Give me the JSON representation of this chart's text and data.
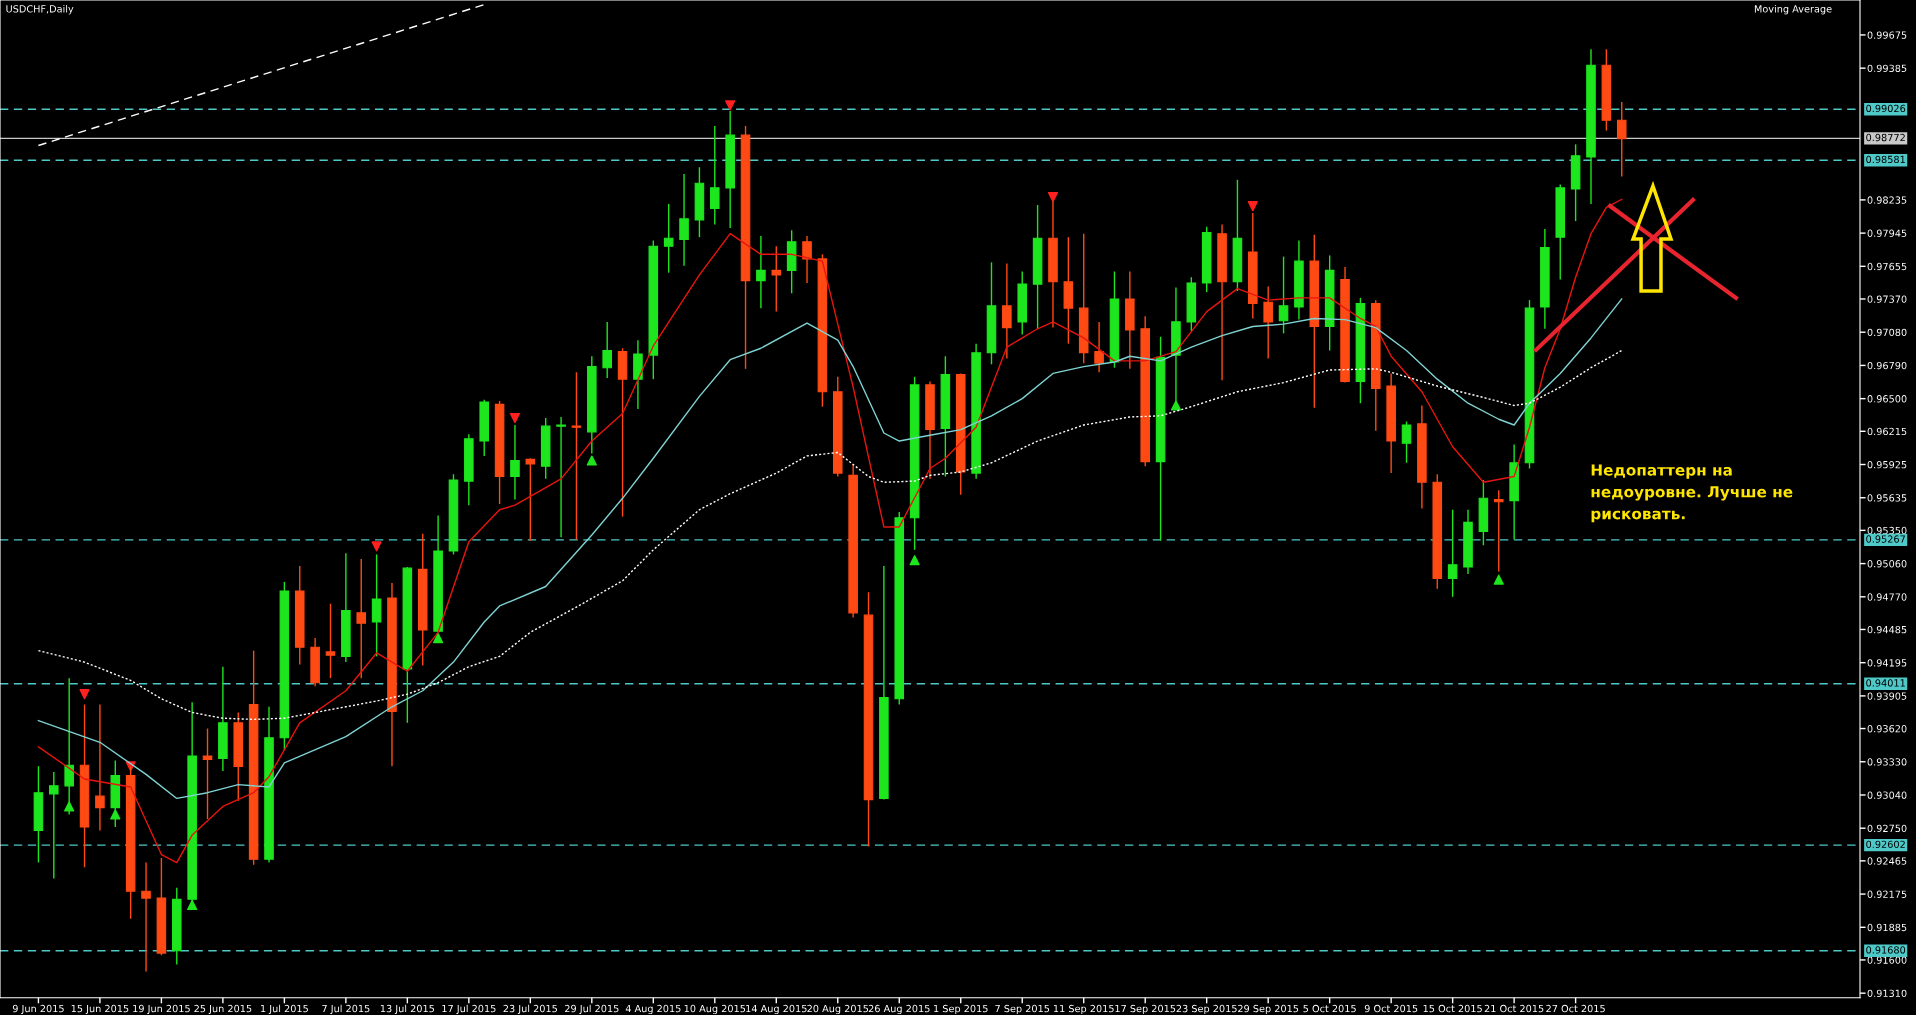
{
  "chart_data": {
    "type": "candlestick",
    "title": "USDCHF,Daily",
    "annotations": [
      "Moving Average",
      "Недопаттерн на\nнедоуровне. Лучше не\nрисковать."
    ],
    "categories": [
      "9 Jun 2015",
      null,
      null,
      null,
      "15 Jun 2015",
      null,
      null,
      null,
      "19 Jun 2015",
      null,
      null,
      null,
      "25 Jun 2015",
      null,
      null,
      null,
      "1 Jul 2015",
      null,
      null,
      null,
      "7 Jul 2015",
      null,
      null,
      null,
      "13 Jul 2015",
      null,
      null,
      null,
      "17 Jul 2015",
      null,
      null,
      null,
      "23 Jul 2015",
      null,
      null,
      null,
      "29 Jul 2015",
      null,
      null,
      null,
      "4 Aug 2015",
      null,
      null,
      null,
      "10 Aug 2015",
      null,
      null,
      null,
      "14 Aug 2015",
      null,
      null,
      null,
      "20 Aug 2015",
      null,
      null,
      null,
      "26 Aug 2015",
      null,
      null,
      null,
      "1 Sep 2015",
      null,
      null,
      null,
      "7 Sep 2015",
      null,
      null,
      null,
      "11 Sep 2015",
      null,
      null,
      null,
      "17 Sep 2015",
      null,
      null,
      null,
      "23 Sep 2015",
      null,
      null,
      null,
      "29 Sep 2015",
      null,
      null,
      null,
      "5 Oct 2015",
      null,
      null,
      null,
      "9 Oct 2015",
      null,
      null,
      null,
      "15 Oct 2015",
      null,
      null,
      null,
      "21 Oct 2015",
      null,
      null,
      null,
      "27 Oct 2015",
      null,
      null,
      null
    ],
    "ohlc": [
      [
        0.9273,
        0.9329,
        0.9245,
        0.9306
      ],
      [
        0.9305,
        0.9324,
        0.9231,
        0.9312
      ],
      [
        0.9312,
        0.9406,
        0.9287,
        0.933
      ],
      [
        0.933,
        0.9383,
        0.9241,
        0.9276
      ],
      [
        0.9303,
        0.9383,
        0.9273,
        0.9293
      ],
      [
        0.9293,
        0.9334,
        0.9276,
        0.9321
      ],
      [
        0.9321,
        0.9329,
        0.9196,
        0.922
      ],
      [
        0.922,
        0.9245,
        0.915,
        0.9214
      ],
      [
        0.9214,
        0.9249,
        0.9164,
        0.9166
      ],
      [
        0.9168,
        0.9223,
        0.9156,
        0.9213
      ],
      [
        0.9213,
        0.9385,
        0.921,
        0.9338
      ],
      [
        0.9338,
        0.9362,
        0.9283,
        0.9335
      ],
      [
        0.9336,
        0.9416,
        0.9325,
        0.9367
      ],
      [
        0.9367,
        0.9376,
        0.9299,
        0.9329
      ],
      [
        0.9383,
        0.943,
        0.9243,
        0.9248
      ],
      [
        0.9248,
        0.9381,
        0.9245,
        0.9354
      ],
      [
        0.9354,
        0.949,
        0.9343,
        0.9482
      ],
      [
        0.9482,
        0.9504,
        0.9418,
        0.9433
      ],
      [
        0.9433,
        0.9441,
        0.9399,
        0.9402
      ],
      [
        0.9429,
        0.9471,
        0.9406,
        0.9426
      ],
      [
        0.9425,
        0.9515,
        0.942,
        0.9465
      ],
      [
        0.9463,
        0.951,
        0.9406,
        0.9454
      ],
      [
        0.9455,
        0.9514,
        0.9425,
        0.9475
      ],
      [
        0.9476,
        0.9489,
        0.9329,
        0.9377
      ],
      [
        0.9414,
        0.9503,
        0.9367,
        0.9502
      ],
      [
        0.9501,
        0.9532,
        0.9417,
        0.9448
      ],
      [
        0.9447,
        0.9548,
        0.9446,
        0.9517
      ],
      [
        0.9517,
        0.9584,
        0.9514,
        0.9579
      ],
      [
        0.9578,
        0.9619,
        0.9557,
        0.9615
      ],
      [
        0.9613,
        0.9649,
        0.96,
        0.9647
      ],
      [
        0.9645,
        0.9648,
        0.9558,
        0.9582
      ],
      [
        0.9582,
        0.9627,
        0.9562,
        0.9596
      ],
      [
        0.9597,
        0.9598,
        0.9526,
        0.9593
      ],
      [
        0.9591,
        0.9633,
        0.958,
        0.9626
      ],
      [
        0.9626,
        0.9634,
        0.9529,
        0.9627
      ],
      [
        0.9626,
        0.9673,
        0.9527,
        0.9625
      ],
      [
        0.9621,
        0.9687,
        0.9602,
        0.9678
      ],
      [
        0.9677,
        0.9717,
        0.9668,
        0.9692
      ],
      [
        0.9691,
        0.9694,
        0.9547,
        0.9667
      ],
      [
        0.9667,
        0.9701,
        0.9641,
        0.9689
      ],
      [
        0.9688,
        0.9788,
        0.9667,
        0.9783
      ],
      [
        0.9783,
        0.982,
        0.976,
        0.979
      ],
      [
        0.9789,
        0.9846,
        0.9766,
        0.9807
      ],
      [
        0.9806,
        0.9852,
        0.9791,
        0.9838
      ],
      [
        0.9816,
        0.9888,
        0.9802,
        0.9834
      ],
      [
        0.9834,
        0.9901,
        0.9799,
        0.988
      ],
      [
        0.988,
        0.9888,
        0.9676,
        0.9753
      ],
      [
        0.9753,
        0.9792,
        0.9729,
        0.9762
      ],
      [
        0.9762,
        0.9783,
        0.9726,
        0.9758
      ],
      [
        0.9762,
        0.9797,
        0.9742,
        0.9787
      ],
      [
        0.9787,
        0.9792,
        0.9751,
        0.9772
      ],
      [
        0.9772,
        0.9776,
        0.9643,
        0.9656
      ],
      [
        0.9656,
        0.9669,
        0.9582,
        0.9585
      ],
      [
        0.9583,
        0.9593,
        0.9459,
        0.9463
      ],
      [
        0.9461,
        0.9481,
        0.9259,
        0.93
      ],
      [
        0.9301,
        0.9504,
        0.93,
        0.9389
      ],
      [
        0.9388,
        0.9551,
        0.9383,
        0.9546
      ],
      [
        0.9546,
        0.9669,
        0.9518,
        0.9662
      ],
      [
        0.9662,
        0.9665,
        0.958,
        0.9623
      ],
      [
        0.9624,
        0.9687,
        0.9582,
        0.9671
      ],
      [
        0.9671,
        0.9672,
        0.9566,
        0.9586
      ],
      [
        0.9585,
        0.9698,
        0.958,
        0.969
      ],
      [
        0.969,
        0.9769,
        0.968,
        0.9731
      ],
      [
        0.9731,
        0.9768,
        0.9685,
        0.9712
      ],
      [
        0.9717,
        0.9761,
        0.9706,
        0.975
      ],
      [
        0.975,
        0.9819,
        0.9711,
        0.979
      ],
      [
        0.979,
        0.9822,
        0.9712,
        0.9752
      ],
      [
        0.9752,
        0.9791,
        0.9698,
        0.9729
      ],
      [
        0.9729,
        0.9794,
        0.9681,
        0.969
      ],
      [
        0.9691,
        0.9717,
        0.9673,
        0.9681
      ],
      [
        0.9682,
        0.9761,
        0.9677,
        0.9737
      ],
      [
        0.9737,
        0.9761,
        0.9676,
        0.971
      ],
      [
        0.9711,
        0.9722,
        0.9591,
        0.9595
      ],
      [
        0.9595,
        0.9704,
        0.9526,
        0.9686
      ],
      [
        0.9688,
        0.9747,
        0.9642,
        0.9717
      ],
      [
        0.9717,
        0.9756,
        0.9709,
        0.9751
      ],
      [
        0.9751,
        0.98,
        0.9743,
        0.9795
      ],
      [
        0.9794,
        0.9802,
        0.9666,
        0.9752
      ],
      [
        0.9752,
        0.9841,
        0.9744,
        0.979
      ],
      [
        0.9778,
        0.9812,
        0.972,
        0.9733
      ],
      [
        0.9734,
        0.9748,
        0.9685,
        0.9717
      ],
      [
        0.9718,
        0.9774,
        0.9707,
        0.9731
      ],
      [
        0.973,
        0.9788,
        0.9719,
        0.977
      ],
      [
        0.977,
        0.9793,
        0.9642,
        0.9713
      ],
      [
        0.9713,
        0.9775,
        0.9692,
        0.9762
      ],
      [
        0.9754,
        0.9765,
        0.9664,
        0.9665
      ],
      [
        0.9665,
        0.9738,
        0.9646,
        0.9733
      ],
      [
        0.9733,
        0.9736,
        0.9622,
        0.9659
      ],
      [
        0.9661,
        0.9672,
        0.9585,
        0.9613
      ],
      [
        0.9611,
        0.963,
        0.9594,
        0.9627
      ],
      [
        0.9628,
        0.9644,
        0.9554,
        0.9577
      ],
      [
        0.9577,
        0.9584,
        0.9484,
        0.9493
      ],
      [
        0.9493,
        0.9553,
        0.9477,
        0.9505
      ],
      [
        0.9503,
        0.9553,
        0.9497,
        0.9542
      ],
      [
        0.9534,
        0.9579,
        0.9522,
        0.9563
      ],
      [
        0.9562,
        0.957,
        0.9499,
        0.956
      ],
      [
        0.9561,
        0.961,
        0.9527,
        0.9594
      ],
      [
        0.9594,
        0.9736,
        0.9589,
        0.9729
      ],
      [
        0.973,
        0.9798,
        0.9711,
        0.9782
      ],
      [
        0.9791,
        0.9837,
        0.9754,
        0.9834
      ],
      [
        0.9833,
        0.9872,
        0.9805,
        0.9862
      ],
      [
        0.9861,
        0.9955,
        0.982,
        0.9941
      ],
      [
        0.9941,
        0.9955,
        0.9884,
        0.9893
      ],
      [
        0.9893,
        0.9909,
        0.9844,
        0.9877
      ]
    ],
    "colors": [
      "#1ee61e",
      "#1ee61e",
      "#1ee61e",
      "#ff4a14",
      "#ff4a14",
      "#1ee61e",
      "#ff4a14",
      "#ff4a14",
      "#ff4a14",
      "#1ee61e",
      "#1ee61e",
      "#ff4a14",
      "#1ee61e",
      "#ff4a14",
      "#ff4a14",
      "#1ee61e",
      "#1ee61e",
      "#ff4a14",
      "#ff4a14",
      "#ff4a14",
      "#1ee61e",
      "#ff4a14",
      "#1ee61e",
      "#ff4a14",
      "#1ee61e",
      "#ff4a14",
      "#1ee61e",
      "#1ee61e",
      "#1ee61e",
      "#1ee61e",
      "#ff4a14",
      "#1ee61e",
      "#ff4a14",
      "#1ee61e",
      "#1ee61e",
      "#ff4a14",
      "#1ee61e",
      "#1ee61e",
      "#ff4a14",
      "#1ee61e",
      "#1ee61e",
      "#1ee61e",
      "#1ee61e",
      "#1ee61e",
      "#1ee61e",
      "#1ee61e",
      "#ff4a14",
      "#1ee61e",
      "#ff4a14",
      "#1ee61e",
      "#ff4a14",
      "#ff4a14",
      "#ff4a14",
      "#ff4a14",
      "#ff4a14",
      "#1ee61e",
      "#1ee61e",
      "#1ee61e",
      "#ff4a14",
      "#1ee61e",
      "#ff4a14",
      "#1ee61e",
      "#1ee61e",
      "#ff4a14",
      "#1ee61e",
      "#1ee61e",
      "#ff4a14",
      "#ff4a14",
      "#ff4a14",
      "#ff4a14",
      "#1ee61e",
      "#ff4a14",
      "#ff4a14",
      "#1ee61e",
      "#1ee61e",
      "#1ee61e",
      "#1ee61e",
      "#ff4a14",
      "#1ee61e",
      "#ff4a14",
      "#ff4a14",
      "#1ee61e",
      "#1ee61e",
      "#ff4a14",
      "#1ee61e",
      "#ff4a14",
      "#1ee61e",
      "#ff4a14",
      "#ff4a14",
      "#1ee61e",
      "#ff4a14",
      "#ff4a14",
      "#1ee61e",
      "#1ee61e",
      "#1ee61e",
      "#ff4a14",
      "#1ee61e",
      "#1ee61e",
      "#1ee61e",
      "#1ee61e",
      "#1ee61e",
      "#1ee61e",
      "#ff4a14",
      "#ff4a14"
    ],
    "series": [
      {
        "type": "line",
        "color": "#e8150f",
        "line_style": "solid",
        "values": [
          0.9346,
          null,
          null,
          0.9318,
          null,
          null,
          0.9311,
          null,
          0.9252,
          0.9245,
          0.9269,
          null,
          0.9294,
          null,
          0.9306,
          0.932,
          null,
          0.9367,
          null,
          null,
          0.9395,
          null,
          0.9428,
          null,
          0.9412,
          null,
          0.9446,
          null,
          0.9525,
          null,
          0.9553,
          0.9557,
          null,
          null,
          0.958,
          null,
          0.9613,
          null,
          0.9637,
          null,
          0.9696,
          null,
          null,
          0.9758,
          null,
          0.9794,
          null,
          0.9776,
          null,
          0.9776,
          null,
          0.977,
          null,
          0.966,
          null,
          0.9538,
          0.9538,
          null,
          0.9589,
          0.9598,
          null,
          0.9625,
          null,
          0.9695,
          null,
          0.9711,
          0.9717,
          null,
          0.9703,
          null,
          0.9683,
          null,
          0.9683,
          null,
          0.9691,
          null,
          0.9726,
          null,
          0.9746,
          null,
          0.9736,
          null,
          0.9738,
          null,
          0.9738,
          null,
          0.972,
          0.9713,
          0.9687,
          null,
          0.9656,
          null,
          0.9608,
          null,
          0.9577,
          null,
          0.9582,
          0.9625,
          0.9677,
          0.9711,
          0.9756,
          0.9794,
          0.9817,
          0.9824
        ]
      },
      {
        "type": "line",
        "color": "#7fd3d3",
        "line_style": "solid",
        "values": [
          0.9369,
          null,
          null,
          null,
          0.935,
          null,
          null,
          0.9322,
          null,
          0.9301,
          null,
          0.9306,
          null,
          0.9313,
          null,
          0.9311,
          0.9332,
          null,
          null,
          null,
          0.9355,
          null,
          null,
          0.9381,
          null,
          0.9395,
          null,
          0.942,
          null,
          0.9455,
          0.9469,
          null,
          null,
          0.9486,
          null,
          null,
          0.9531,
          null,
          0.9563,
          null,
          0.9598,
          null,
          null,
          0.9652,
          null,
          0.9684,
          null,
          0.9694,
          null,
          null,
          0.9716,
          null,
          0.9701,
          0.9678,
          null,
          0.962,
          0.9613,
          null,
          0.9618,
          null,
          0.9623,
          null,
          0.9635,
          null,
          0.965,
          null,
          0.9672,
          null,
          0.9678,
          null,
          0.9682,
          0.9687,
          null,
          0.9683,
          null,
          0.9695,
          null,
          0.9705,
          null,
          0.9713,
          null,
          0.9715,
          null,
          0.972,
          null,
          0.9719,
          null,
          0.9712,
          null,
          0.9692,
          null,
          0.9667,
          null,
          0.9646,
          null,
          0.9632,
          0.9627,
          0.9646,
          null,
          0.9672,
          null,
          0.9703,
          null,
          0.9737
        ]
      },
      {
        "type": "line",
        "color": "#ffffff",
        "line_style": "dotted",
        "values": [
          0.943,
          null,
          null,
          0.942,
          null,
          null,
          0.9404,
          null,
          0.9388,
          null,
          0.9376,
          null,
          0.9371,
          null,
          0.937,
          null,
          0.9371,
          null,
          0.9376,
          null,
          0.9381,
          null,
          0.9386,
          null,
          0.9392,
          null,
          0.9402,
          null,
          0.9416,
          null,
          0.9425,
          null,
          0.9446,
          null,
          null,
          0.9468,
          null,
          null,
          0.9491,
          null,
          0.9518,
          null,
          null,
          0.9553,
          null,
          0.9567,
          null,
          null,
          0.9585,
          null,
          0.96,
          null,
          0.9603,
          null,
          0.9582,
          0.9577,
          null,
          0.9578,
          0.9583,
          null,
          0.9586,
          null,
          0.9594,
          null,
          null,
          0.9613,
          null,
          null,
          0.9627,
          null,
          null,
          0.9634,
          null,
          0.9635,
          null,
          0.9643,
          null,
          null,
          0.9656,
          null,
          null,
          0.9664,
          null,
          null,
          0.9675,
          null,
          null,
          0.9676,
          0.9673,
          null,
          null,
          0.9661,
          null,
          null,
          0.9651,
          null,
          0.9644,
          0.9646,
          null,
          0.966,
          null,
          0.9677,
          null,
          0.9692
        ]
      },
      {
        "type": "line",
        "color": "#ffffff",
        "line_style": "dashed",
        "values": [
          0.9871,
          null,
          null,
          null,
          null,
          null,
          null,
          null,
          null,
          null,
          null,
          null,
          null,
          null,
          null,
          null,
          null,
          null,
          null,
          null,
          null,
          null,
          null,
          null,
          null,
          null,
          null,
          null,
          null,
          0.9994,
          null,
          null,
          null,
          null,
          null,
          null,
          null,
          null,
          null,
          null,
          null,
          null,
          null,
          null,
          null,
          null,
          null,
          null,
          null,
          null,
          null,
          null,
          null,
          null,
          null,
          null,
          null,
          null,
          null,
          null,
          null,
          null,
          null,
          null,
          null,
          null,
          null,
          null,
          null,
          null,
          null,
          null,
          null,
          null,
          null,
          null,
          null,
          null,
          null,
          null,
          null,
          null,
          null,
          null,
          null,
          null,
          null,
          null,
          null,
          null,
          null,
          null,
          null,
          null,
          null,
          null,
          null,
          null,
          null,
          null,
          null,
          null,
          null,
          null
        ]
      },
      {
        "type": "scatter",
        "color": "#1ee61e",
        "marker": "triangle",
        "values": [
          null,
          null,
          0.9294,
          null,
          null,
          0.9287,
          null,
          null,
          null,
          null,
          0.9208,
          null,
          null,
          null,
          null,
          null,
          null,
          null,
          null,
          null,
          null,
          null,
          null,
          null,
          null,
          null,
          0.9441,
          null,
          null,
          null,
          null,
          null,
          null,
          null,
          null,
          null,
          0.9596,
          null,
          null,
          null,
          null,
          null,
          null,
          null,
          null,
          null,
          null,
          null,
          null,
          null,
          null,
          null,
          null,
          null,
          null,
          null,
          null,
          0.9509,
          null,
          null,
          null,
          null,
          null,
          null,
          null,
          null,
          null,
          null,
          null,
          null,
          null,
          null,
          null,
          null,
          0.9644,
          null,
          null,
          null,
          null,
          null,
          null,
          null,
          null,
          null,
          null,
          null,
          null,
          null,
          null,
          null,
          null,
          null,
          null,
          null,
          null,
          0.9492,
          null,
          null,
          null,
          null,
          null,
          null,
          null,
          null
        ]
      },
      {
        "type": "scatter",
        "color": "#ff2020",
        "marker": "triangle_down",
        "values": [
          null,
          null,
          null,
          0.9392,
          null,
          null,
          0.9329,
          null,
          null,
          null,
          null,
          null,
          null,
          null,
          null,
          null,
          null,
          null,
          null,
          null,
          null,
          null,
          0.9521,
          null,
          null,
          null,
          null,
          null,
          null,
          null,
          null,
          0.9633,
          null,
          null,
          null,
          null,
          null,
          null,
          null,
          null,
          null,
          null,
          null,
          null,
          null,
          0.9906,
          null,
          null,
          null,
          null,
          null,
          null,
          null,
          null,
          null,
          null,
          null,
          null,
          null,
          null,
          null,
          null,
          null,
          null,
          null,
          null,
          0.9826,
          null,
          null,
          null,
          null,
          null,
          null,
          null,
          null,
          null,
          null,
          null,
          null,
          0.9818,
          null,
          null,
          null,
          null,
          null,
          null,
          null,
          null,
          null,
          null,
          null,
          null,
          null,
          null,
          null,
          null,
          null,
          null,
          null,
          null,
          null,
          null,
          null,
          null
        ]
      }
    ],
    "ref_lines": [
      {
        "axis": "y",
        "value": 0.99026,
        "label": "0.99026",
        "color": "#4fc8c8",
        "line_style": "dashed"
      },
      {
        "axis": "y",
        "value": 0.98772,
        "label": "0.98772",
        "color": "#c8c8c8",
        "line_style": "solid"
      },
      {
        "axis": "y",
        "value": 0.98581,
        "label": "0.98581",
        "color": "#4fc8c8",
        "line_style": "dashed"
      },
      {
        "axis": "y",
        "value": 0.95267,
        "label": "0.95267",
        "color": "#4fc8c8",
        "line_style": "dashed"
      },
      {
        "axis": "y",
        "value": 0.94011,
        "label": "0.94011",
        "color": "#4fc8c8",
        "line_style": "dashed"
      },
      {
        "axis": "y",
        "value": 0.92602,
        "label": "0.92602",
        "color": "#4fc8c8",
        "line_style": "dashed"
      },
      {
        "axis": "y",
        "value": 0.9168,
        "label": "0.91680",
        "color": "#4fc8c8",
        "line_style": "dashed"
      }
    ],
    "ylim": [
      0.9127,
      0.9998
    ],
    "yticks": [
      {
        "value": 0.9131,
        "label": "0.91310"
      },
      {
        "value": 0.916,
        "label": "0.91600"
      },
      {
        "value": 0.91885,
        "label": "0.91885"
      },
      {
        "value": 0.92175,
        "label": "0.92175"
      },
      {
        "value": 0.92465,
        "label": "0.92465"
      },
      {
        "value": 0.9275,
        "label": "0.92750"
      },
      {
        "value": 0.9304,
        "label": "0.93040"
      },
      {
        "value": 0.9333,
        "label": "0.93330"
      },
      {
        "value": 0.9362,
        "label": "0.93620"
      },
      {
        "value": 0.93905,
        "label": "0.93905"
      },
      {
        "value": 0.94195,
        "label": "0.94195"
      },
      {
        "value": 0.94485,
        "label": "0.94485"
      },
      {
        "value": 0.9477,
        "label": "0.94770"
      },
      {
        "value": 0.9506,
        "label": "0.95060"
      },
      {
        "value": 0.9535,
        "label": "0.95350"
      },
      {
        "value": 0.95635,
        "label": "0.95635"
      },
      {
        "value": 0.95925,
        "label": "0.95925"
      },
      {
        "value": 0.96215,
        "label": "0.96215"
      },
      {
        "value": 0.965,
        "label": "0.96500"
      },
      {
        "value": 0.9679,
        "label": "0.96790"
      },
      {
        "value": 0.9708,
        "label": "0.97080"
      },
      {
        "value": 0.9737,
        "label": "0.97370"
      },
      {
        "value": 0.97655,
        "label": "0.97655"
      },
      {
        "value": 0.97945,
        "label": "0.97945"
      },
      {
        "value": 0.98235,
        "label": "0.98235"
      },
      {
        "value": 0.99385,
        "label": "0.99385"
      },
      {
        "value": 0.99675,
        "label": "0.99675"
      }
    ],
    "grid": false,
    "legend": false
  }
}
